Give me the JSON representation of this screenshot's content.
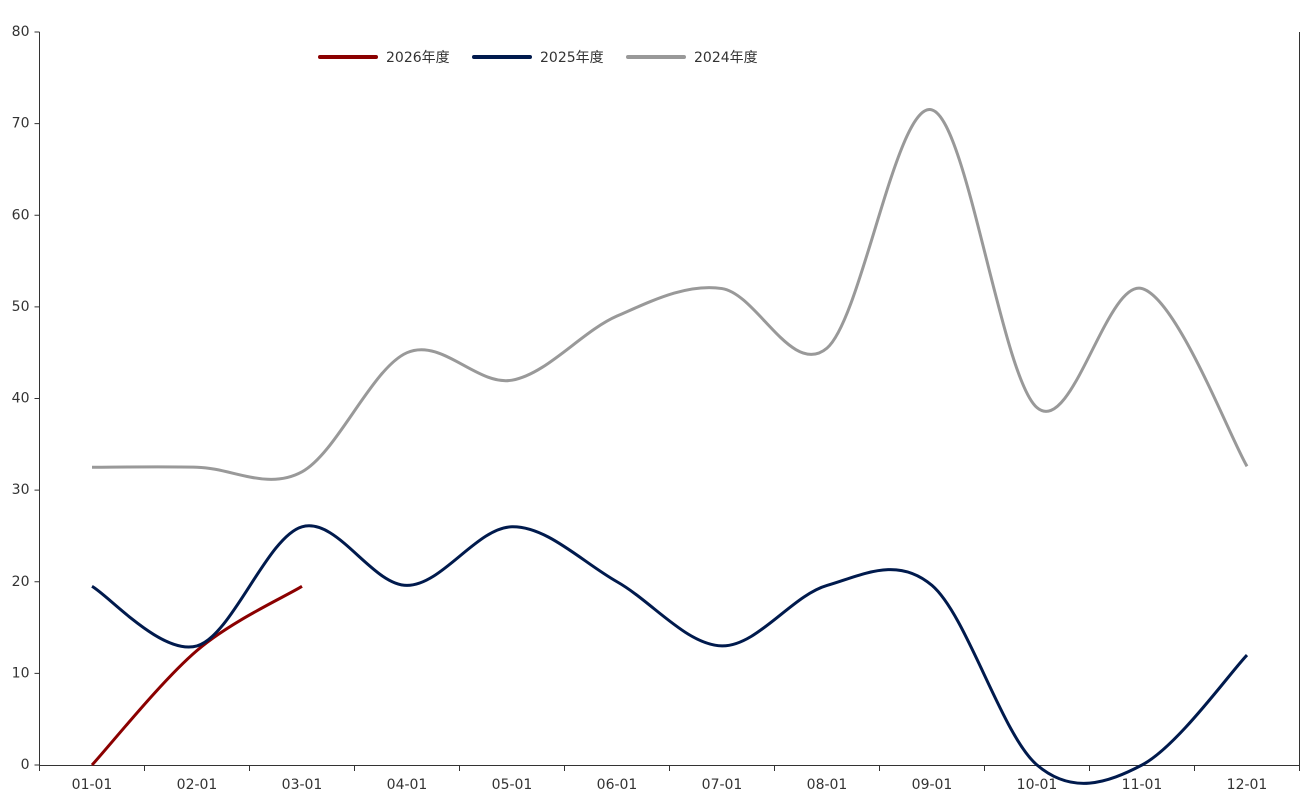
{
  "chart_data": {
    "type": "line",
    "categories": [
      "01-01",
      "02-01",
      "03-01",
      "04-01",
      "05-01",
      "06-01",
      "07-01",
      "08-01",
      "09-01",
      "10-01",
      "11-01",
      "12-01"
    ],
    "series": [
      {
        "name": "2026年度",
        "color": "#8b0000",
        "values": [
          0,
          12.5,
          19.5,
          null,
          null,
          null,
          null,
          null,
          null,
          null,
          null,
          null
        ]
      },
      {
        "name": "2025年度",
        "color": "#001a4d",
        "values": [
          19.5,
          13,
          26,
          19.6,
          26,
          20,
          13,
          19.6,
          19.6,
          0,
          0,
          12
        ]
      },
      {
        "name": "2024年度",
        "color": "#999999",
        "values": [
          32.5,
          32.5,
          32,
          45,
          42,
          49,
          52,
          45.5,
          71.5,
          39,
          52,
          32.6
        ]
      }
    ],
    "ylim": [
      0,
      80
    ],
    "yticks": [
      0,
      10,
      20,
      30,
      40,
      50,
      60,
      70,
      80
    ],
    "grid": false,
    "smooth": true
  }
}
